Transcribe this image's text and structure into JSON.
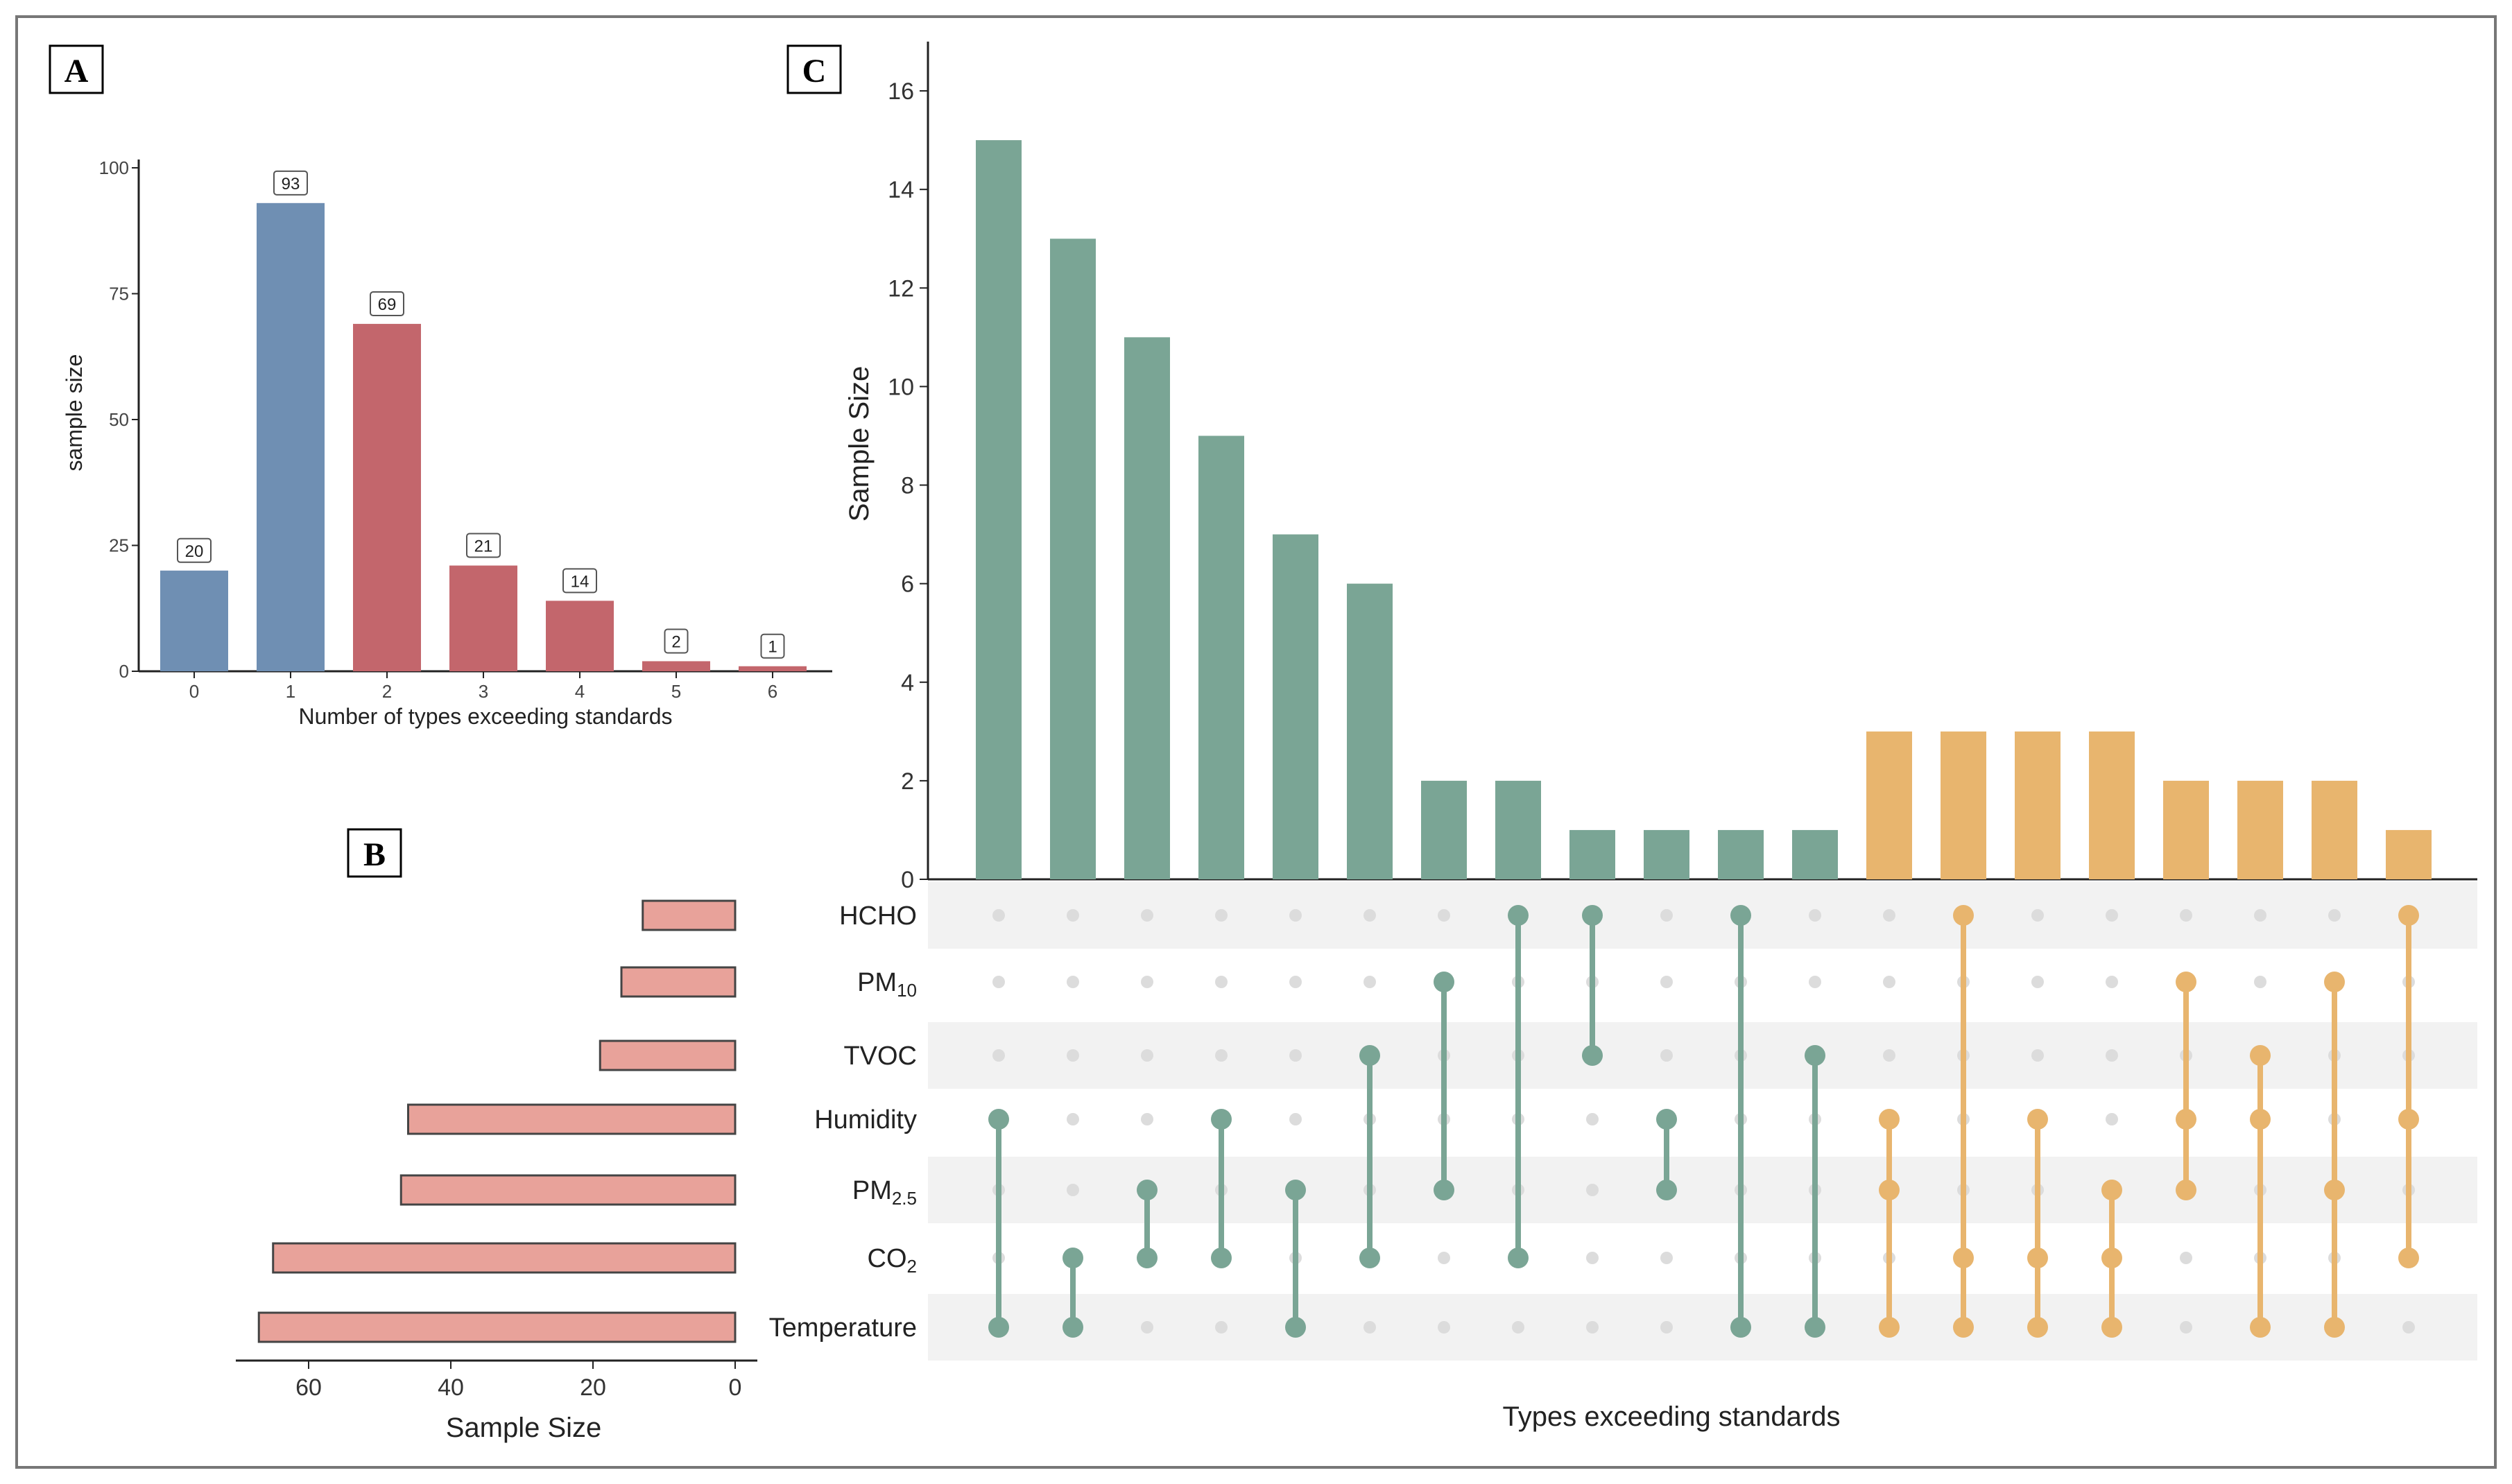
{
  "panel_labels": {
    "a": "A",
    "b": "B",
    "c": "C"
  },
  "colors": {
    "a_low": "#6f8fb3",
    "a_high": "#c3666c",
    "b_bar": "#e8a29a",
    "c_single": "#7aa595",
    "c_multi": "#e8b56e",
    "dot_off": "#dcdcdc",
    "stripe": "#f2f2f2"
  },
  "chart_data": [
    {
      "id": "A",
      "type": "bar",
      "title": "",
      "xlabel": "Number of types exceeding standards",
      "ylabel": "sample size",
      "categories": [
        "0",
        "1",
        "2",
        "3",
        "4",
        "5",
        "6"
      ],
      "values": [
        20,
        93,
        69,
        21,
        14,
        2,
        1
      ],
      "value_labels": [
        "20",
        "93",
        "69",
        "21",
        "14",
        "2",
        "1"
      ],
      "color_groups": [
        "low",
        "low",
        "high",
        "high",
        "high",
        "high",
        "high"
      ],
      "ylim": [
        0,
        100
      ],
      "yticks": [
        "0",
        "25",
        "50",
        "75",
        "100"
      ]
    },
    {
      "id": "B",
      "type": "bar",
      "orientation": "horizontal-reversed",
      "title": "",
      "xlabel": "Sample Size",
      "ylabel": "",
      "categories": [
        "HCHO",
        "PM10",
        "TVOC",
        "Humidity",
        "PM2.5",
        "CO2",
        "Temperature"
      ],
      "values": [
        13,
        16,
        19,
        46,
        47,
        65,
        67
      ],
      "xlim": [
        0,
        70
      ],
      "xticks": [
        "0",
        "20",
        "40",
        "60"
      ]
    },
    {
      "id": "C",
      "type": "bar",
      "subtype": "upset",
      "title": "",
      "xlabel": "Types exceeding standards",
      "ylabel": "Sample Size",
      "ylim": [
        0,
        17
      ],
      "yticks": [
        "0",
        "2",
        "4",
        "6",
        "8",
        "10",
        "12",
        "14",
        "16"
      ],
      "set_labels": [
        {
          "name": "HCHO",
          "sub": ""
        },
        {
          "name": "PM",
          "sub": "10"
        },
        {
          "name": "TVOC",
          "sub": ""
        },
        {
          "name": "Humidity",
          "sub": ""
        },
        {
          "name": "PM",
          "sub": "2.5"
        },
        {
          "name": "CO",
          "sub": "2"
        },
        {
          "name": "Temperature",
          "sub": ""
        }
      ],
      "values": [
        15,
        13,
        11,
        9,
        7,
        6,
        2,
        2,
        1,
        1,
        1,
        1,
        3,
        3,
        3,
        3,
        2,
        2,
        2,
        1
      ],
      "groups": [
        "single",
        "single",
        "single",
        "single",
        "single",
        "single",
        "single",
        "single",
        "single",
        "single",
        "single",
        "single",
        "multi",
        "multi",
        "multi",
        "multi",
        "multi",
        "multi",
        "multi",
        "multi"
      ],
      "intersections": [
        [
          "Humidity",
          "Temperature"
        ],
        [
          "CO2",
          "Temperature"
        ],
        [
          "PM2.5",
          "CO2"
        ],
        [
          "Humidity",
          "CO2"
        ],
        [
          "PM2.5",
          "Temperature"
        ],
        [
          "TVOC",
          "CO2"
        ],
        [
          "PM10",
          "PM2.5"
        ],
        [
          "HCHO",
          "CO2"
        ],
        [
          "HCHO",
          "TVOC"
        ],
        [
          "Humidity",
          "PM2.5"
        ],
        [
          "HCHO",
          "Temperature"
        ],
        [
          "TVOC",
          "Temperature"
        ],
        [
          "Humidity",
          "PM2.5",
          "Temperature"
        ],
        [
          "HCHO",
          "CO2",
          "Temperature"
        ],
        [
          "Humidity",
          "CO2",
          "Temperature"
        ],
        [
          "PM2.5",
          "CO2",
          "Temperature"
        ],
        [
          "PM10",
          "Humidity",
          "PM2.5"
        ],
        [
          "TVOC",
          "Humidity",
          "Temperature"
        ],
        [
          "PM10",
          "PM2.5",
          "Temperature"
        ],
        [
          "HCHO",
          "Humidity",
          "CO2"
        ]
      ]
    }
  ]
}
